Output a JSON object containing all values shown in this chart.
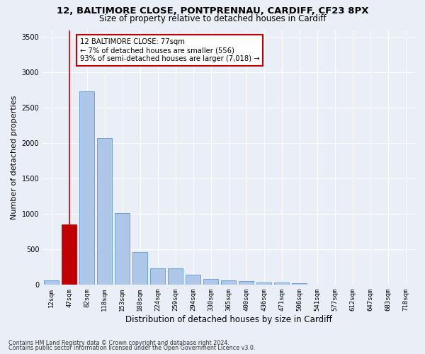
{
  "title_line1": "12, BALTIMORE CLOSE, PONTPRENNAU, CARDIFF, CF23 8PX",
  "title_line2": "Size of property relative to detached houses in Cardiff",
  "xlabel": "Distribution of detached houses by size in Cardiff",
  "ylabel": "Number of detached properties",
  "footnote1": "Contains HM Land Registry data © Crown copyright and database right 2024.",
  "footnote2": "Contains public sector information licensed under the Open Government Licence v3.0.",
  "bar_labels": [
    "12sqm",
    "47sqm",
    "82sqm",
    "118sqm",
    "153sqm",
    "188sqm",
    "224sqm",
    "259sqm",
    "294sqm",
    "330sqm",
    "365sqm",
    "400sqm",
    "436sqm",
    "471sqm",
    "506sqm",
    "541sqm",
    "577sqm",
    "612sqm",
    "647sqm",
    "683sqm",
    "718sqm"
  ],
  "bar_values": [
    60,
    850,
    2730,
    2070,
    1010,
    460,
    225,
    225,
    140,
    75,
    60,
    50,
    30,
    30,
    20,
    0,
    0,
    0,
    0,
    0,
    0
  ],
  "bar_color": "#aec6e8",
  "bar_edgecolor": "#5b9bd5",
  "highlight_bar_index": 1,
  "highlight_color": "#c00000",
  "vline_x": 1,
  "annotation_text": "12 BALTIMORE CLOSE: 77sqm\n← 7% of detached houses are smaller (556)\n93% of semi-detached houses are larger (7,018) →",
  "annotation_box_edgecolor": "#c00000",
  "annotation_box_facecolor": "#ffffff",
  "ylim": [
    0,
    3600
  ],
  "yticks": [
    0,
    500,
    1000,
    1500,
    2000,
    2500,
    3000,
    3500
  ],
  "bg_color": "#eaeff7",
  "plot_bg_color": "#eaeff7",
  "grid_color": "#ffffff",
  "title1_fontsize": 9.5,
  "title2_fontsize": 8.5,
  "ylabel_fontsize": 8,
  "xlabel_fontsize": 8.5,
  "tick_fontsize": 6.5,
  "annot_fontsize": 7.2
}
